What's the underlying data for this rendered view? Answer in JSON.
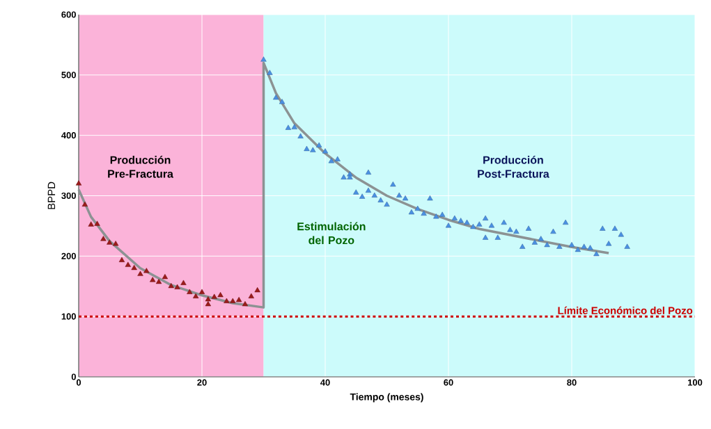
{
  "chart_data": {
    "type": "scatter",
    "xlabel": "Tiempo (meses)",
    "ylabel": "BPPD",
    "xlim": [
      0,
      100
    ],
    "ylim": [
      0,
      600
    ],
    "xticks": [
      0,
      20,
      40,
      60,
      80,
      100
    ],
    "yticks": [
      0,
      100,
      200,
      300,
      400,
      500,
      600
    ],
    "grid": true,
    "series": [
      {
        "type": "scatter",
        "marker": "triangle",
        "color": "#9b1b1b",
        "x": [
          0,
          1,
          2,
          3,
          4,
          5,
          6,
          7,
          8,
          9,
          10,
          11,
          12,
          13,
          14,
          15,
          16,
          17,
          18,
          19,
          20,
          21,
          21,
          22,
          23,
          24,
          25,
          26,
          27,
          28,
          29
        ],
        "values": [
          320,
          285,
          252,
          253,
          228,
          222,
          220,
          193,
          185,
          180,
          170,
          175,
          160,
          157,
          165,
          150,
          148,
          155,
          140,
          133,
          140,
          120,
          128,
          132,
          135,
          125,
          125,
          127,
          120,
          133,
          143
        ]
      },
      {
        "type": "scatter",
        "marker": "triangle",
        "color": "#4a90e2",
        "x": [
          30,
          31,
          32,
          33,
          34,
          35,
          36,
          37,
          38,
          39,
          40,
          41,
          42,
          43,
          44,
          44,
          45,
          46,
          47,
          47,
          48,
          49,
          50,
          51,
          52,
          53,
          54,
          55,
          56,
          57,
          58,
          59,
          60,
          61,
          62,
          63,
          64,
          65,
          66,
          66,
          67,
          68,
          69,
          70,
          71,
          72,
          73,
          74,
          75,
          76,
          77,
          78,
          79,
          80,
          81,
          82,
          83,
          84,
          85,
          86,
          87,
          88,
          89
        ],
        "values": [
          525,
          503,
          462,
          455,
          412,
          413,
          398,
          377,
          375,
          383,
          373,
          357,
          360,
          330,
          335,
          330,
          305,
          298,
          338,
          308,
          300,
          292,
          285,
          318,
          300,
          295,
          272,
          278,
          270,
          295,
          265,
          268,
          250,
          262,
          258,
          255,
          248,
          252,
          262,
          230,
          250,
          230,
          255,
          243,
          240,
          215,
          245,
          222,
          228,
          218,
          240,
          215,
          255,
          218,
          210,
          215,
          213,
          203,
          245,
          220,
          245,
          235,
          215
        ]
      },
      {
        "type": "line",
        "color": "#8c9293",
        "line_style": "solid",
        "x": [
          0,
          2,
          5,
          10,
          15,
          20,
          25,
          30,
          30,
          32,
          35,
          40,
          45,
          50,
          55,
          60,
          65,
          70,
          75,
          80,
          86
        ],
        "values": [
          310,
          265,
          225,
          180,
          152,
          135,
          122,
          115,
          520,
          470,
          420,
          370,
          330,
          300,
          278,
          260,
          245,
          235,
          225,
          215,
          205
        ]
      }
    ],
    "bands": [
      {
        "axis": "x",
        "from": 0,
        "to": 30,
        "color": "#fbb3d9"
      },
      {
        "axis": "x",
        "from": 30,
        "to": 100,
        "color": "#ccfbfb"
      }
    ],
    "ref_lines": [
      {
        "axis": "y",
        "value": 100,
        "label": "Límite Económico del Pozo",
        "color": "#cc0000",
        "line_style": "dotted"
      }
    ],
    "annotations": [
      "Producción Pre-Fractura",
      "Estimulación del Pozo",
      "Producción Post-Fractura"
    ]
  }
}
